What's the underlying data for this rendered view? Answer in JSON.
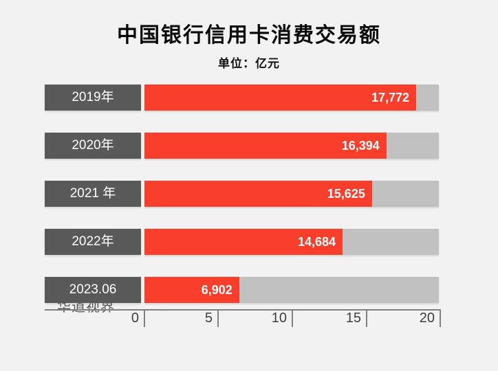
{
  "chart_data": {
    "type": "bar",
    "orientation": "horizontal",
    "title": "中国银行信用卡消费交易额",
    "subtitle": "单位：亿元",
    "categories": [
      "2019年",
      "2020年",
      "2021 年",
      "2022年",
      "2023.06"
    ],
    "values": [
      17772,
      16394,
      15625,
      14684,
      6902
    ],
    "value_labels": [
      "17,772",
      "16,394",
      "15,625",
      "14,684",
      "6,902"
    ],
    "displayed_bar_pct": [
      92.3,
      82.2,
      77.3,
      67.3,
      32.2
    ],
    "xlim": [
      0,
      20
    ],
    "x_ticks": [
      "0",
      "5",
      "10",
      "15",
      "20"
    ],
    "grid": false,
    "legend": "none",
    "watermark": "华道视界",
    "colors": {
      "bar": "#f93e2c",
      "category_box": "#595959",
      "track": "#c1c1c1",
      "axis": "#7f7f7f",
      "tick_label": "#3d3d3d",
      "title": "#0a0a0a",
      "value_text": "#ffffff",
      "background": "#f2f2f2"
    }
  }
}
